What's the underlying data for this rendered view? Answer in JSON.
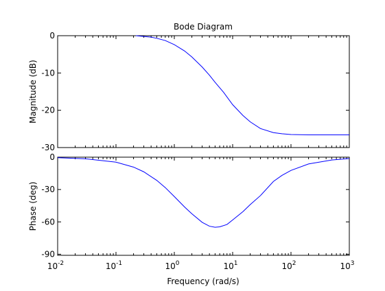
{
  "chart_data": {
    "type": "line",
    "title": "Bode Diagram",
    "xlabel": "Frequency  (rad/s)",
    "x_scale": "log",
    "xlim": [
      0.01,
      1000
    ],
    "x_ticks": [
      0.01,
      0.1,
      1,
      10,
      100,
      1000
    ],
    "x_tick_labels": [
      {
        "base": "10",
        "exp": "-2"
      },
      {
        "base": "10",
        "exp": "-1"
      },
      {
        "base": "10",
        "exp": "0"
      },
      {
        "base": "10",
        "exp": "1"
      },
      {
        "base": "10",
        "exp": "2"
      },
      {
        "base": "10",
        "exp": "3"
      }
    ],
    "grid": false,
    "line_color": "#0000ff",
    "panels": [
      {
        "name": "magnitude",
        "ylabel": "Magnitude (dB)",
        "ylim": [
          -30,
          0
        ],
        "y_ticks": [
          0,
          -10,
          -20,
          -30
        ],
        "y_tick_labels": [
          "0",
          "-10",
          "-20",
          "-30"
        ],
        "series": [
          {
            "x": [
              0.22,
              0.3,
              0.4,
              0.5,
              0.7,
              1,
              1.5,
              2,
              3,
              4,
              5,
              7,
              10,
              15,
              20,
              30,
              50,
              70,
              100,
              200,
              500,
              1000
            ],
            "y": [
              0,
              -0.2,
              -0.4,
              -0.7,
              -1.3,
              -2.4,
              -4.1,
              -5.7,
              -8.4,
              -10.6,
              -12.5,
              -15.2,
              -18.5,
              -21.4,
              -23.1,
              -24.9,
              -26.0,
              -26.3,
              -26.5,
              -26.6,
              -26.6,
              -26.6
            ]
          }
        ]
      },
      {
        "name": "phase",
        "ylabel": "Phase (deg)",
        "ylim": [
          -91,
          0
        ],
        "y_ticks": [
          0,
          -30,
          -60,
          -90
        ],
        "y_tick_labels": [
          "0",
          "-30",
          "-60",
          "-90"
        ],
        "series": [
          {
            "x": [
              0.01,
              0.03,
              0.1,
              0.2,
              0.3,
              0.5,
              0.7,
              1,
              1.5,
              2,
              3,
              4,
              5,
              6,
              8,
              10,
              15,
              20,
              30,
              50,
              70,
              100,
              200,
              500,
              1000
            ],
            "y": [
              -0.5,
              -1.5,
              -4.6,
              -9.2,
              -13.6,
              -21.5,
              -28.2,
              -36.5,
              -46.2,
              -52.5,
              -60.4,
              -64.0,
              -65.0,
              -64.6,
              -62.4,
              -58.2,
              -50.5,
              -44.0,
              -35.6,
              -22.5,
              -16.9,
              -12.3,
              -6.3,
              -2.6,
              -1.3
            ]
          }
        ]
      }
    ]
  }
}
